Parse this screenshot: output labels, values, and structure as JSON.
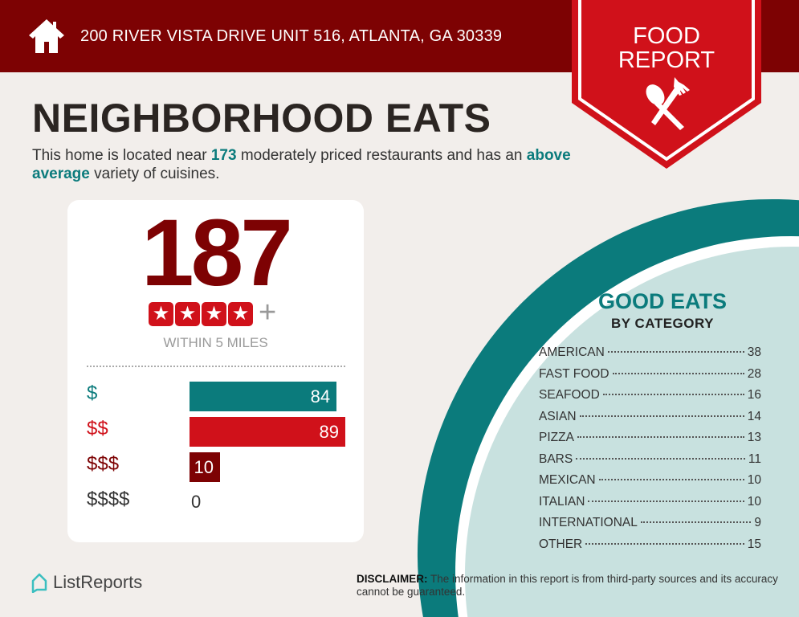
{
  "header": {
    "address": "200 RIVER VISTA DRIVE UNIT 516, ATLANTA, GA 30339",
    "icon": "home-icon"
  },
  "badge": {
    "line1": "FOOD",
    "line2": "REPORT",
    "icon": "spoon-fork-icon"
  },
  "title": "NEIGHBORHOOD EATS",
  "intro": {
    "part1": "This home is located near ",
    "count": "173",
    "part2": " moderately priced restaurants and has an ",
    "variety": "above average",
    "part3": " variety of cuisines."
  },
  "card": {
    "total": "187",
    "stars": 4,
    "plus": "+",
    "within": "WITHIN 5 MILES",
    "price_levels": [
      {
        "label": "$",
        "value": 84,
        "color": "#0b7b7c"
      },
      {
        "label": "$$",
        "value": 89,
        "color": "#d0111a"
      },
      {
        "label": "$$$",
        "value": 10,
        "color": "#7d0203"
      },
      {
        "label": "$$$$",
        "value": 0,
        "color": "#333333"
      }
    ]
  },
  "chart_data": {
    "type": "bar",
    "categories": [
      "$",
      "$$",
      "$$$",
      "$$$$"
    ],
    "values": [
      84,
      89,
      10,
      0
    ]
  },
  "good_eats": {
    "title": "GOOD EATS",
    "subtitle": "BY CATEGORY",
    "categories": [
      {
        "name": "AMERICAN",
        "count": "38"
      },
      {
        "name": "FAST FOOD",
        "count": "28"
      },
      {
        "name": "SEAFOOD",
        "count": "16"
      },
      {
        "name": "ASIAN",
        "count": "14"
      },
      {
        "name": "PIZZA",
        "count": "13"
      },
      {
        "name": "BARS",
        "count": "11"
      },
      {
        "name": "MEXICAN",
        "count": "10"
      },
      {
        "name": "ITALIAN",
        "count": "10"
      },
      {
        "name": "INTERNATIONAL",
        "count": "9"
      },
      {
        "name": "OTHER",
        "count": "15"
      }
    ]
  },
  "footer": {
    "logo": "ListReports",
    "disclaimer_label": "DISCLAIMER:",
    "disclaimer": " The information in this report is from third-party sources and its accuracy cannot be guaranteed."
  },
  "colors": {
    "dark_red": "#7d0203",
    "red": "#d0111a",
    "teal": "#0b7b7c",
    "light_teal": "#c8e1df",
    "background": "#f2eeeb"
  }
}
